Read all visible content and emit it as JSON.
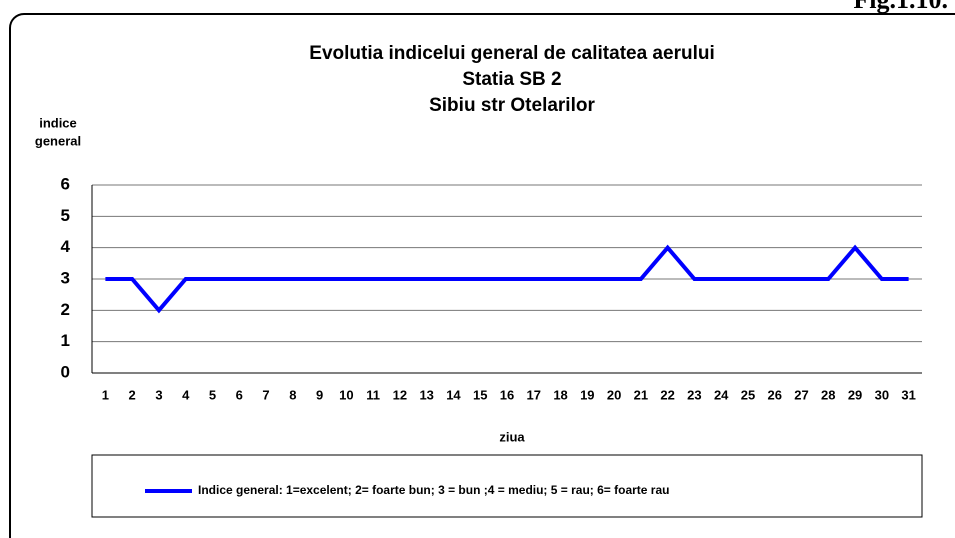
{
  "figure_label": "Fig.1.10.",
  "chart_data": {
    "type": "line",
    "title": [
      "Evolutia indicelui  general de calitatea aerului",
      "Statia SB 2",
      "Sibiu str Otelarilor"
    ],
    "y_label": [
      "indice",
      "general"
    ],
    "x_label": "ziua",
    "categories": [
      "1",
      "2",
      "3",
      "4",
      "5",
      "6",
      "7",
      "8",
      "9",
      "10",
      "11",
      "12",
      "13",
      "14",
      "15",
      "16",
      "17",
      "18",
      "19",
      "20",
      "21",
      "22",
      "23",
      "24",
      "25",
      "26",
      "27",
      "28",
      "29",
      "30",
      "31"
    ],
    "series": [
      {
        "name": "Indice general: 1=excelent; 2= foarte bun; 3 = bun ;4 = mediu; 5 = rau; 6= foarte rau",
        "color": "#0000ff",
        "values": [
          3,
          3,
          2,
          3,
          3,
          3,
          3,
          3,
          3,
          3,
          3,
          3,
          3,
          3,
          3,
          3,
          3,
          3,
          3,
          3,
          3,
          4,
          3,
          3,
          3,
          3,
          3,
          3,
          4,
          3,
          3
        ]
      }
    ],
    "ylim": [
      0,
      6
    ],
    "yticks": [
      0,
      1,
      2,
      3,
      4,
      5,
      6
    ],
    "grid": true,
    "legend": "bottom"
  }
}
